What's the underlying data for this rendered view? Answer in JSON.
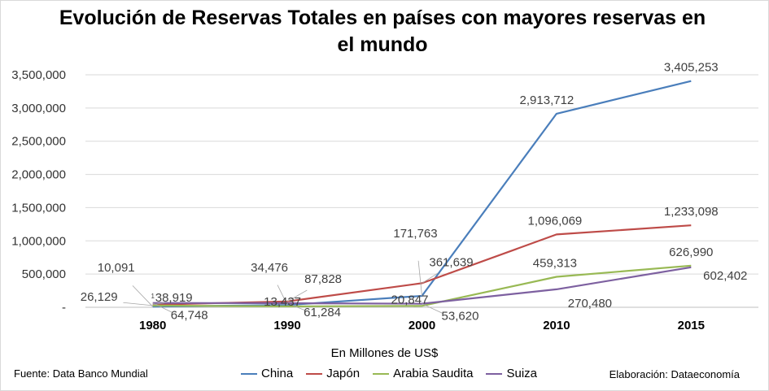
{
  "chart_data": {
    "type": "line",
    "title": "Evolución de Reservas Totales en países con mayores reservas en el mundo",
    "xlabel": "En Millones de US$",
    "ylabel": "",
    "categories": [
      "1980",
      "1990",
      "2000",
      "2010",
      "2015"
    ],
    "ylim": [
      0,
      3500000
    ],
    "yticks": [
      "-",
      "500,000",
      "1,000,000",
      "1,500,000",
      "2,000,000",
      "2,500,000",
      "3,000,000",
      "3,500,000"
    ],
    "grid": true,
    "legend_position": "bottom",
    "series": [
      {
        "name": "China",
        "color": "#4a7ebb",
        "values": [
          10091,
          34476,
          171763,
          2913712,
          3405253
        ],
        "labels": [
          "10,091",
          "34,476",
          "171,763",
          "2,913,712",
          "3,405,253"
        ]
      },
      {
        "name": "Japón",
        "color": "#be4b48",
        "values": [
          38919,
          87828,
          361639,
          1096069,
          1233098
        ],
        "labels": [
          "38,919",
          "87,828",
          "361,639",
          "1,096,069",
          "1,233,098"
        ]
      },
      {
        "name": "Arabia Saudita",
        "color": "#98b954",
        "values": [
          26129,
          13437,
          20847,
          459313,
          626990
        ],
        "labels": [
          "26,129",
          "13,437",
          "20,847",
          "459,313",
          "626,990"
        ]
      },
      {
        "name": "Suiza",
        "color": "#7d60a0",
        "values": [
          64748,
          61284,
          53620,
          270480,
          602402
        ],
        "labels": [
          "64,748",
          "61,284",
          "53,620",
          "270,480",
          "602,402"
        ]
      }
    ],
    "small_marker": "1"
  },
  "footer": {
    "source": "Fuente: Data Banco Mundial",
    "credit": "Elaboración: Dataeconomía"
  }
}
